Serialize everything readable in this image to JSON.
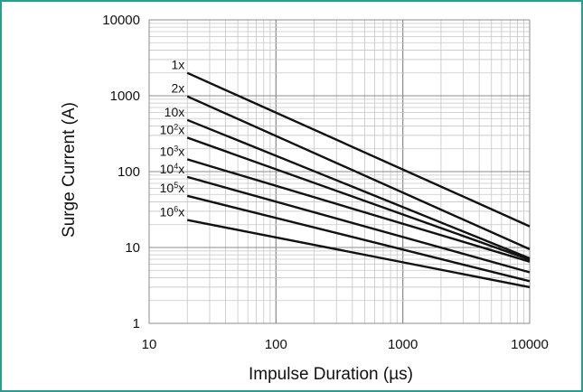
{
  "chart_data": {
    "type": "line",
    "xlabel": "Impulse Duration (µs)",
    "ylabel": "Surge Current (A)",
    "xscale": "log",
    "yscale": "log",
    "xlim": [
      10,
      10000
    ],
    "ylim": [
      1,
      10000
    ],
    "grid": true,
    "x_ticks": [
      "10",
      "100",
      "1000",
      "10000"
    ],
    "y_ticks": [
      "1",
      "10",
      "100",
      "1000",
      "10000"
    ],
    "series": [
      {
        "name": "1x",
        "label_base": "1",
        "label_sup": "",
        "label_suffix": "x",
        "x": [
          20,
          10000
        ],
        "y": [
          2000,
          19
        ]
      },
      {
        "name": "2x",
        "label_base": "2",
        "label_sup": "",
        "label_suffix": "x",
        "x": [
          20,
          10000
        ],
        "y": [
          980,
          9.5
        ]
      },
      {
        "name": "10x",
        "label_base": "10",
        "label_sup": "",
        "label_suffix": "x",
        "x": [
          20,
          10000
        ],
        "y": [
          480,
          7.2
        ]
      },
      {
        "name": "10²x",
        "label_base": "10",
        "label_sup": "2",
        "label_suffix": "x",
        "x": [
          20,
          10000
        ],
        "y": [
          280,
          6.9
        ]
      },
      {
        "name": "10³x",
        "label_base": "10",
        "label_sup": "3",
        "label_suffix": "x",
        "x": [
          20,
          10000
        ],
        "y": [
          145,
          6.5
        ]
      },
      {
        "name": "10⁴x",
        "label_base": "10",
        "label_sup": "4",
        "label_suffix": "x",
        "x": [
          20,
          10000
        ],
        "y": [
          85,
          4.7
        ]
      },
      {
        "name": "10⁵x",
        "label_base": "10",
        "label_sup": "5",
        "label_suffix": "x",
        "x": [
          20,
          10000
        ],
        "y": [
          48,
          3.6
        ]
      },
      {
        "name": "10⁶x",
        "label_base": "10",
        "label_sup": "6",
        "label_suffix": "x",
        "x": [
          20,
          10000
        ],
        "y": [
          23,
          3.0
        ]
      }
    ]
  }
}
